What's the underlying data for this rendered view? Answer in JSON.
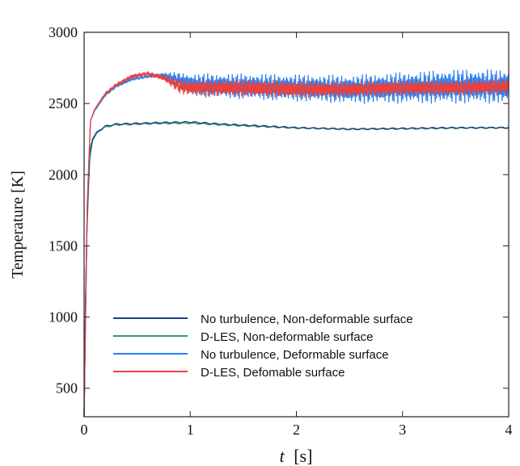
{
  "chart_data": {
    "type": "line",
    "title": "",
    "ylabel": "Temperature [K]",
    "xlabel_italic": "t",
    "xlabel_unit": "[s]",
    "xlim": [
      0,
      4
    ],
    "ylim": [
      300,
      3000
    ],
    "xticks": [
      "0",
      "1",
      "2",
      "3",
      "4"
    ],
    "yticks": [
      "3000",
      "2500",
      "2000",
      "1500",
      "1000",
      "500"
    ],
    "ytick_values": [
      3000,
      2500,
      2000,
      1500,
      1000,
      500
    ],
    "xtick_values": [
      0,
      1,
      2,
      3,
      4
    ],
    "grid": false,
    "legend_position": "bottom-left",
    "series": [
      {
        "name": "No turbulence, Non-deformable surface",
        "color": "#1f3c88",
        "x": [
          0,
          0.02,
          0.05,
          0.08,
          0.12,
          0.2,
          0.3,
          0.5,
          0.7,
          1.0,
          1.3,
          1.6,
          2.0,
          2.5,
          3.0,
          3.5,
          4.0
        ],
        "y": [
          300,
          1500,
          2150,
          2250,
          2300,
          2340,
          2355,
          2360,
          2365,
          2370,
          2355,
          2345,
          2330,
          2320,
          2325,
          2330,
          2330
        ]
      },
      {
        "name": "D-LES, Non-deformable surface",
        "color": "#2e9e5a",
        "x": [
          0,
          0.02,
          0.05,
          0.08,
          0.12,
          0.2,
          0.3,
          0.5,
          0.7,
          1.0,
          1.3,
          1.6,
          2.0,
          2.5,
          3.0,
          3.5,
          4.0
        ],
        "y": [
          300,
          1450,
          2100,
          2240,
          2295,
          2335,
          2350,
          2355,
          2360,
          2362,
          2350,
          2340,
          2328,
          2320,
          2322,
          2328,
          2330
        ]
      },
      {
        "name": "No turbulence, Deformable surface",
        "color": "#2f80ed",
        "x": [
          0,
          0.03,
          0.06,
          0.1,
          0.2,
          0.3,
          0.45,
          0.6,
          0.75,
          0.9,
          1.0,
          1.5,
          2.0,
          2.5,
          3.0,
          3.5,
          4.0
        ],
        "y": [
          300,
          1800,
          2380,
          2450,
          2560,
          2620,
          2670,
          2690,
          2700,
          2660,
          2630,
          2620,
          2610,
          2600,
          2610,
          2620,
          2620
        ],
        "fluctuation": [
          0,
          0,
          0,
          5,
          10,
          10,
          10,
          10,
          15,
          60,
          80,
          90,
          95,
          100,
          110,
          120,
          120
        ]
      },
      {
        "name": "D-LES, Defomable surface",
        "color": "#e8413f",
        "x": [
          0,
          0.03,
          0.06,
          0.1,
          0.2,
          0.3,
          0.45,
          0.6,
          0.75,
          0.9,
          1.0,
          1.5,
          2.0,
          2.5,
          3.0,
          3.5,
          4.0
        ],
        "y": [
          300,
          1800,
          2380,
          2460,
          2570,
          2630,
          2690,
          2710,
          2680,
          2620,
          2610,
          2610,
          2600,
          2600,
          2610,
          2610,
          2620
        ],
        "fluctuation": [
          0,
          0,
          0,
          5,
          10,
          12,
          15,
          15,
          20,
          50,
          55,
          60,
          60,
          55,
          55,
          55,
          55
        ]
      }
    ]
  }
}
